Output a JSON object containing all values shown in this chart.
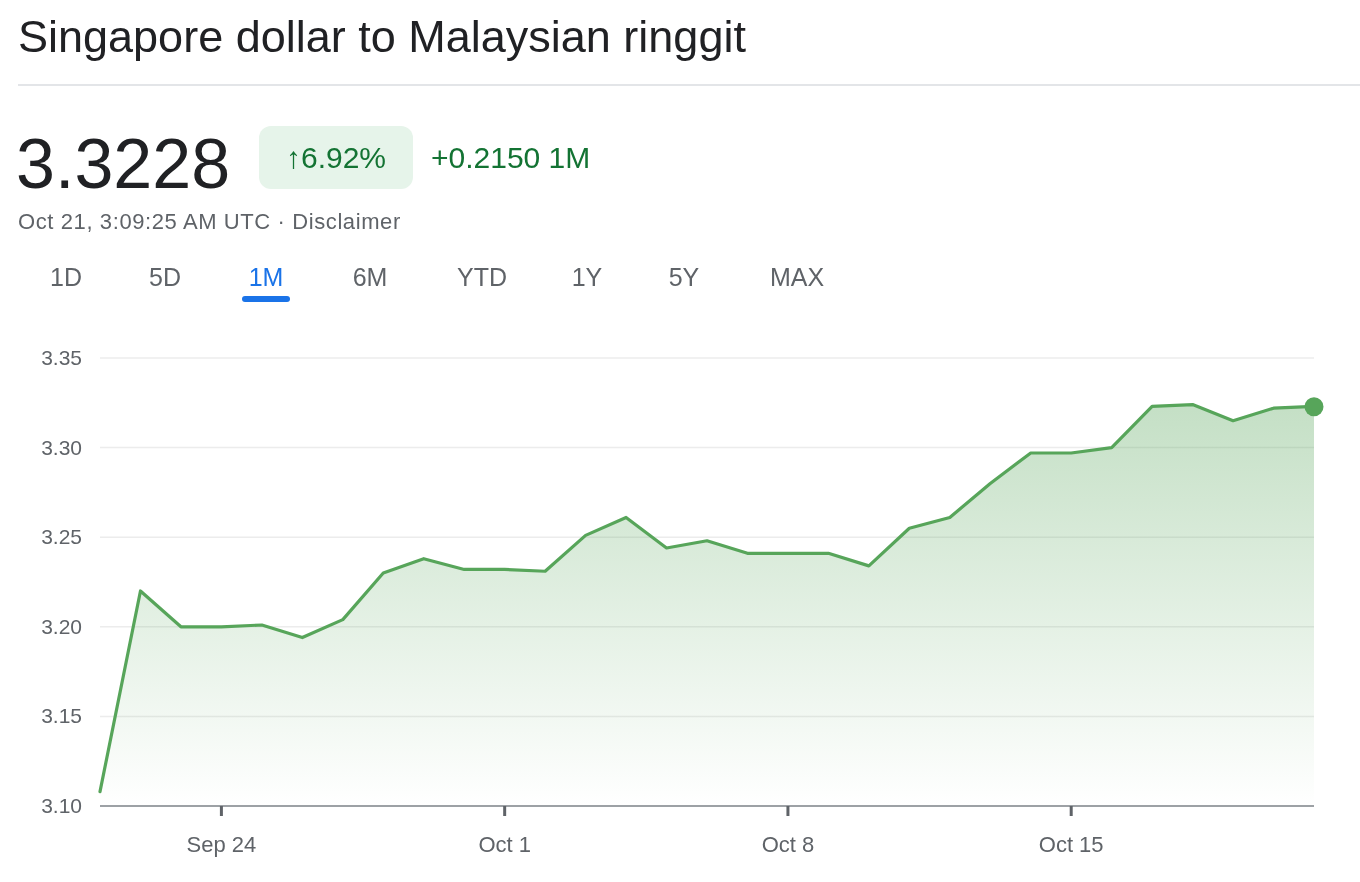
{
  "chart_data": {
    "type": "area",
    "title": "Singapore dollar to Malaysian ringgit",
    "annotations": [
      "3.3228",
      "↑6.92%",
      "+0.2150 1M",
      "Oct 21, 3:09:25 AM UTC · Disclaimer",
      "1D",
      "5D",
      "1M",
      "6M",
      "YTD",
      "1Y",
      "5Y",
      "MAX"
    ],
    "x": [
      "--09-21",
      "--09-22",
      "--09-23",
      "--09-24",
      "--09-25",
      "--09-26",
      "--09-27",
      "--09-28",
      "--09-29",
      "--09-30",
      "--10-01",
      "--10-02",
      "--10-03",
      "--10-04",
      "--10-05",
      "--10-06",
      "--10-07",
      "--10-08",
      "--10-09",
      "--10-10",
      "--10-11",
      "--10-12",
      "--10-13",
      "--10-14",
      "--10-15",
      "--10-16",
      "--10-17",
      "--10-18",
      "--10-19",
      "--10-20",
      "--10-21"
    ],
    "series": [
      {
        "color": "#57a55a",
        "values": [
          3.108,
          3.22,
          3.2,
          3.2,
          3.201,
          3.194,
          3.204,
          3.23,
          3.238,
          3.232,
          3.232,
          3.231,
          3.251,
          3.261,
          3.244,
          3.248,
          3.241,
          3.241,
          3.241,
          3.234,
          3.255,
          3.261,
          3.28,
          3.297,
          3.297,
          3.3,
          3.323,
          3.324,
          3.315,
          3.322,
          3.323
        ]
      },
      {
        "type": "scatter",
        "color": "#57a55a",
        "marker": "circle",
        "x": [
          "--10-21"
        ],
        "values": [
          3.3228
        ]
      }
    ],
    "xlim": [
      "--09-21",
      "--10-21"
    ],
    "xticks": [
      {
        "value": "--09-24",
        "label": "Sep 24"
      },
      {
        "value": "--10-01",
        "label": "Oct 1"
      },
      {
        "value": "--10-08",
        "label": "Oct 8"
      },
      {
        "value": "--10-15",
        "label": "Oct 15"
      }
    ],
    "ylim": [
      3.1,
      3.35
    ],
    "yticks": [
      {
        "value": 3.1,
        "label": "3.10"
      },
      {
        "value": 3.15,
        "label": "3.15"
      },
      {
        "value": 3.2,
        "label": "3.20"
      },
      {
        "value": 3.25,
        "label": "3.25"
      },
      {
        "value": 3.3,
        "label": "3.30"
      },
      {
        "value": 3.35,
        "label": "3.35"
      }
    ],
    "grid": "y"
  }
}
